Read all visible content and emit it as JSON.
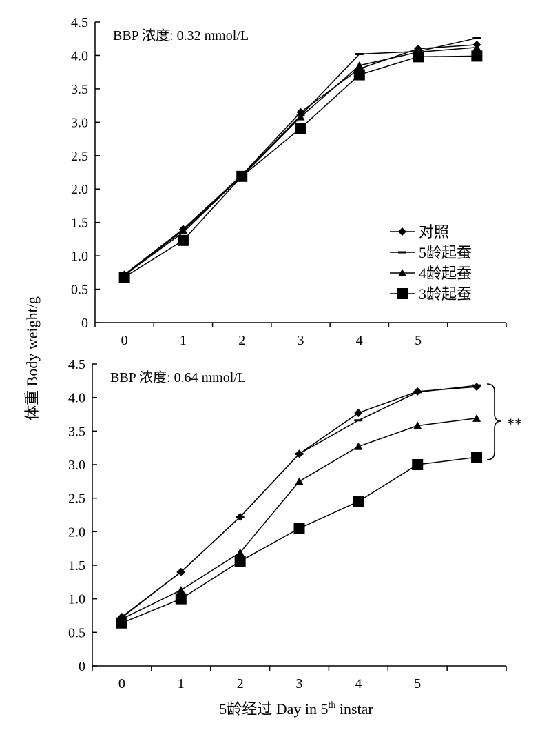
{
  "figure": {
    "ylabel": "体重 Body weight/g",
    "xlabel": "5龄经过 Day in 5th instar",
    "xlabel_main": "5龄经过 Day in 5",
    "xlabel_sup": "th",
    "xlabel_tail": " instar",
    "significance": "**"
  },
  "chart_data": [
    {
      "type": "line",
      "title": "BBP 浓度: 0.32 mmol/L",
      "xlabel": "",
      "ylabel": "体重 Body weight/g",
      "x_ticks": [
        "0",
        "1",
        "2",
        "3",
        "4",
        "5"
      ],
      "x": [
        0,
        1,
        2,
        3,
        4,
        5,
        6
      ],
      "ylim": [
        0,
        4.5
      ],
      "y_ticks": [
        "0",
        "0.5",
        "1.0",
        "1.5",
        "2.0",
        "2.5",
        "3.0",
        "3.5",
        "4.0",
        "4.5"
      ],
      "grid": false,
      "legend": "right",
      "series": [
        {
          "name": "对照",
          "marker": "diamond",
          "values": [
            0.72,
            1.4,
            2.21,
            3.15,
            3.8,
            4.1,
            4.16
          ]
        },
        {
          "name": "5龄起蚕",
          "marker": "dash",
          "values": [
            0.71,
            1.35,
            2.2,
            3.1,
            4.02,
            4.06,
            4.26
          ]
        },
        {
          "name": "4龄起蚕",
          "marker": "triangle",
          "values": [
            0.71,
            1.38,
            2.19,
            3.08,
            3.85,
            4.05,
            4.12
          ]
        },
        {
          "name": "3龄起蚕",
          "marker": "square",
          "values": [
            0.68,
            1.23,
            2.19,
            2.91,
            3.71,
            3.98,
            3.99
          ]
        }
      ]
    },
    {
      "type": "line",
      "title": "BBP 浓度: 0.64 mmol/L",
      "xlabel": "5龄经过 Day in 5th instar",
      "ylabel": "体重 Body weight/g",
      "x_ticks": [
        "0",
        "1",
        "2",
        "3",
        "4",
        "5"
      ],
      "x": [
        0,
        1,
        2,
        3,
        4,
        5,
        6
      ],
      "ylim": [
        0,
        4.5
      ],
      "y_ticks": [
        "0",
        "0.5",
        "1.0",
        "1.5",
        "2.0",
        "2.5",
        "3.0",
        "3.5",
        "4.0",
        "4.5"
      ],
      "grid": false,
      "legend": "none",
      "annotation": "**",
      "series": [
        {
          "name": "对照",
          "marker": "diamond",
          "values": [
            0.73,
            1.4,
            2.22,
            3.16,
            3.77,
            4.09,
            4.16
          ]
        },
        {
          "name": "5龄起蚕",
          "marker": "dash",
          "values": [
            0.72,
            1.4,
            2.22,
            3.16,
            3.66,
            4.08,
            4.18
          ]
        },
        {
          "name": "4龄起蚕",
          "marker": "triangle",
          "values": [
            0.7,
            1.13,
            1.69,
            2.75,
            3.27,
            3.58,
            3.69
          ]
        },
        {
          "name": "3龄起蚕",
          "marker": "square",
          "values": [
            0.64,
            1.0,
            1.56,
            2.05,
            2.45,
            3.0,
            3.11
          ]
        }
      ]
    }
  ]
}
